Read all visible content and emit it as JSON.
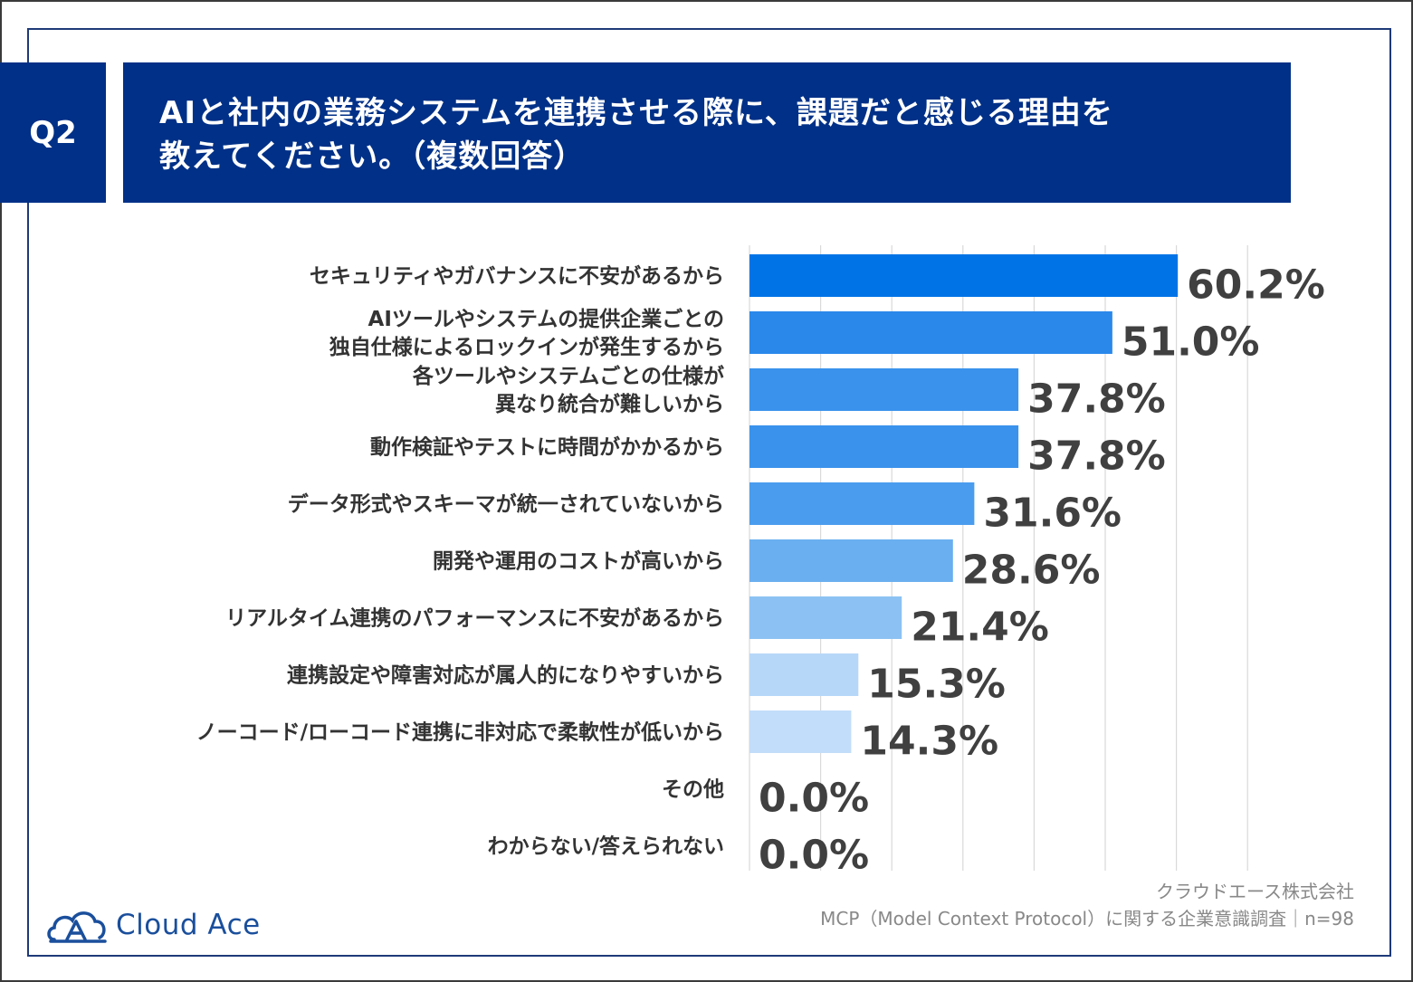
{
  "header": {
    "q_label": "Q2",
    "title": "AIと社内の業務システムを連携させる際に、課題だと感じる理由を\n教えてください。（複数回答）"
  },
  "chart_data": {
    "type": "bar",
    "orientation": "horizontal",
    "categories": [
      [
        "セキュリティやガバナンスに不安があるから"
      ],
      [
        "AIツールやシステムの提供企業ごとの",
        "独自仕様によるロックインが発生するから"
      ],
      [
        "各ツールやシステムごとの仕様が",
        "異なり統合が難しいから"
      ],
      [
        "動作検証やテストに時間がかかるから"
      ],
      [
        "データ形式やスキーマが統一されていないから"
      ],
      [
        "開発や運用のコストが高いから"
      ],
      [
        "リアルタイム連携のパフォーマンスに不安があるから"
      ],
      [
        "連携設定や障害対応が属人的になりやすいから"
      ],
      [
        "ノーコード/ローコード連携に非対応で柔軟性が低いから"
      ],
      [
        "その他"
      ],
      [
        "わからない/答えられない"
      ]
    ],
    "values": [
      60.2,
      51.0,
      37.8,
      37.8,
      31.6,
      28.6,
      21.4,
      15.3,
      14.3,
      0.0,
      0.0
    ],
    "value_labels": [
      "60.2%",
      "51.0%",
      "37.8%",
      "37.8%",
      "31.6%",
      "28.6%",
      "21.4%",
      "15.3%",
      "14.3%",
      "0.0%",
      "0.0%"
    ],
    "bar_colors": [
      "#0073e6",
      "#2a88ea",
      "#3a92ec",
      "#3a92ec",
      "#4a9cee",
      "#6aafef",
      "#8cc2f3",
      "#b6d7f8",
      "#c2ddf9",
      "#c2ddf9",
      "#c2ddf9"
    ],
    "xlim": [
      0,
      70
    ],
    "grid": true
  },
  "footer": {
    "logo_text": "Cloud Ace",
    "company": "クラウドエース株式会社",
    "survey": "MCP（Model Context Protocol）に関する企業意識調査｜n=98"
  },
  "colors": {
    "header_bg": "#003087",
    "frame": "#1e3a78",
    "logo": "#1a4f9c"
  }
}
